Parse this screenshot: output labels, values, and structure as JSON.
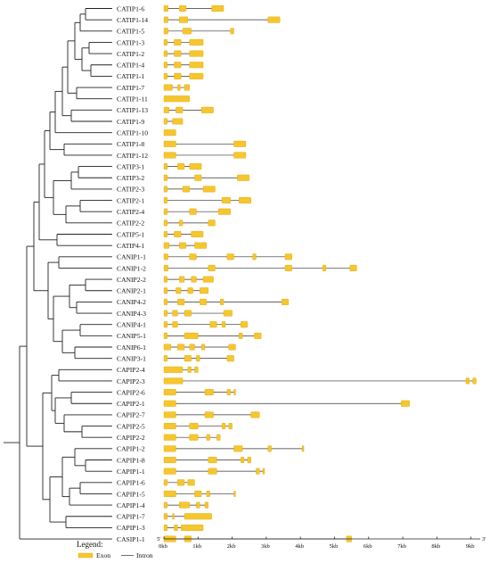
{
  "genes": [
    {
      "name": "CATIP1-6",
      "length": 1.75,
      "exons": [
        [
          0,
          0.12
        ],
        [
          0.45,
          0.65
        ],
        [
          1.4,
          1.75
        ]
      ]
    },
    {
      "name": "CATIP1-14",
      "length": 3.4,
      "exons": [
        [
          0,
          0.12
        ],
        [
          0.45,
          0.7
        ],
        [
          3.05,
          3.4
        ]
      ]
    },
    {
      "name": "CATIP1-5",
      "length": 2.05,
      "exons": [
        [
          0,
          0.12
        ],
        [
          0.55,
          0.8
        ],
        [
          1.95,
          2.05
        ]
      ]
    },
    {
      "name": "CATIP1-3",
      "length": 1.15,
      "exons": [
        [
          0,
          0.1
        ],
        [
          0.3,
          0.5
        ],
        [
          0.75,
          1.15
        ]
      ]
    },
    {
      "name": "CATIP1-2",
      "length": 1.15,
      "exons": [
        [
          0,
          0.1
        ],
        [
          0.3,
          0.5
        ],
        [
          0.75,
          1.15
        ]
      ]
    },
    {
      "name": "CATIP1-4",
      "length": 1.15,
      "exons": [
        [
          0,
          0.1
        ],
        [
          0.3,
          0.5
        ],
        [
          0.75,
          1.15
        ]
      ]
    },
    {
      "name": "CATIP1-1",
      "length": 1.15,
      "exons": [
        [
          0,
          0.1
        ],
        [
          0.3,
          0.5
        ],
        [
          0.75,
          1.15
        ]
      ]
    },
    {
      "name": "CATIP1-7",
      "length": 0.75,
      "exons": [
        [
          0,
          0.25
        ],
        [
          0.4,
          0.48
        ],
        [
          0.6,
          0.75
        ]
      ]
    },
    {
      "name": "CATIP1-11",
      "length": 0.75,
      "exons": [
        [
          0,
          0.75
        ]
      ]
    },
    {
      "name": "CATIP1-13",
      "length": 1.45,
      "exons": [
        [
          0,
          0.15
        ],
        [
          0.35,
          0.55
        ],
        [
          1.1,
          1.45
        ]
      ]
    },
    {
      "name": "CATIP1-9",
      "length": 0.55,
      "exons": [
        [
          0,
          0.1
        ],
        [
          0.25,
          0.55
        ]
      ]
    },
    {
      "name": "CATIP1-10",
      "length": 0.35,
      "exons": [
        [
          0,
          0.35
        ]
      ]
    },
    {
      "name": "CATIP1-8",
      "length": 2.4,
      "exons": [
        [
          0,
          0.35
        ],
        [
          2.05,
          2.4
        ]
      ]
    },
    {
      "name": "CATIP1-12",
      "length": 2.4,
      "exons": [
        [
          0,
          0.35
        ],
        [
          2.05,
          2.4
        ]
      ]
    },
    {
      "name": "CATIP3-1",
      "length": 1.1,
      "exons": [
        [
          0,
          0.1
        ],
        [
          0.4,
          0.6
        ],
        [
          0.75,
          1.1
        ]
      ]
    },
    {
      "name": "CATIP3-2",
      "length": 2.5,
      "exons": [
        [
          0,
          0.1
        ],
        [
          0.9,
          1.1
        ],
        [
          2.15,
          2.5
        ]
      ]
    },
    {
      "name": "CATIP2-3",
      "length": 1.5,
      "exons": [
        [
          0,
          0.1
        ],
        [
          0.55,
          0.75
        ],
        [
          1.15,
          1.5
        ]
      ]
    },
    {
      "name": "CATIP2-1",
      "length": 2.55,
      "exons": [
        [
          0,
          0.1
        ],
        [
          1.7,
          1.95
        ],
        [
          2.2,
          2.55
        ]
      ]
    },
    {
      "name": "CATIP2-4",
      "length": 1.95,
      "exons": [
        [
          0,
          0.1
        ],
        [
          0.75,
          0.95
        ],
        [
          1.6,
          1.95
        ]
      ]
    },
    {
      "name": "CATIP2-2",
      "length": 1.5,
      "exons": [
        [
          0,
          0.1
        ],
        [
          0.45,
          0.55
        ],
        [
          1.3,
          1.5
        ]
      ]
    },
    {
      "name": "CATIP5-1",
      "length": 1.15,
      "exons": [
        [
          0,
          0.1
        ],
        [
          0.3,
          0.5
        ],
        [
          0.8,
          1.15
        ]
      ]
    },
    {
      "name": "CATIP4-1",
      "length": 1.25,
      "exons": [
        [
          0,
          0.15
        ],
        [
          0.45,
          0.65
        ],
        [
          0.9,
          1.25
        ]
      ]
    },
    {
      "name": "CANIP1-1",
      "length": 3.75,
      "exons": [
        [
          0,
          0.12
        ],
        [
          0.75,
          0.95
        ],
        [
          1.85,
          2.05
        ],
        [
          2.6,
          2.7
        ],
        [
          3.55,
          3.75
        ]
      ]
    },
    {
      "name": "CANIP1-2",
      "length": 5.65,
      "exons": [
        [
          0,
          0.12
        ],
        [
          1.3,
          1.5
        ],
        [
          3.55,
          3.75
        ],
        [
          4.65,
          4.75
        ],
        [
          5.45,
          5.65
        ]
      ]
    },
    {
      "name": "CANIP2-2",
      "length": 1.45,
      "exons": [
        [
          0,
          0.1
        ],
        [
          0.45,
          0.6
        ],
        [
          0.8,
          0.95
        ],
        [
          1.15,
          1.45
        ]
      ]
    },
    {
      "name": "CANIP2-1",
      "length": 1.3,
      "exons": [
        [
          0,
          0.1
        ],
        [
          0.35,
          0.5
        ],
        [
          0.7,
          0.85
        ],
        [
          1.05,
          1.3
        ]
      ]
    },
    {
      "name": "CANIP4-2",
      "length": 3.65,
      "exons": [
        [
          0,
          0.1
        ],
        [
          0.4,
          0.6
        ],
        [
          1.05,
          1.25
        ],
        [
          1.65,
          1.75
        ],
        [
          3.45,
          3.65
        ]
      ]
    },
    {
      "name": "CANIP4-3",
      "length": 2.0,
      "exons": [
        [
          0,
          0.1
        ],
        [
          0.25,
          0.4
        ],
        [
          0.6,
          0.8
        ],
        [
          1.75,
          2.0
        ]
      ]
    },
    {
      "name": "CANIP4-1",
      "length": 2.45,
      "exons": [
        [
          0,
          0.1
        ],
        [
          0.25,
          0.4
        ],
        [
          1.35,
          1.55
        ],
        [
          1.7,
          1.8
        ],
        [
          2.25,
          2.45
        ]
      ]
    },
    {
      "name": "CANIP5-1",
      "length": 2.85,
      "exons": [
        [
          0,
          0.1
        ],
        [
          0.6,
          1.0
        ],
        [
          2.2,
          2.3
        ],
        [
          2.65,
          2.85
        ]
      ]
    },
    {
      "name": "CANIP6-1",
      "length": 2.1,
      "exons": [
        [
          0,
          0.2
        ],
        [
          0.4,
          0.6
        ],
        [
          0.75,
          0.9
        ],
        [
          1.1,
          1.2
        ],
        [
          1.9,
          2.1
        ]
      ]
    },
    {
      "name": "CANIP3-1",
      "length": 2.05,
      "exons": [
        [
          0,
          0.1
        ],
        [
          0.6,
          0.8
        ],
        [
          0.95,
          1.05
        ],
        [
          1.85,
          2.05
        ]
      ]
    },
    {
      "name": "CAPIP2-4",
      "length": 1.0,
      "exons": [
        [
          0,
          0.55
        ],
        [
          0.7,
          0.8
        ],
        [
          0.9,
          1.0
        ]
      ]
    },
    {
      "name": "CAPIP2-3",
      "length": 9.15,
      "exons": [
        [
          0,
          0.55
        ],
        [
          8.85,
          8.95
        ],
        [
          9.05,
          9.15
        ]
      ]
    },
    {
      "name": "CAPIP2-6",
      "length": 2.1,
      "exons": [
        [
          0,
          0.35
        ],
        [
          1.2,
          1.45
        ],
        [
          1.85,
          1.95
        ],
        [
          2.05,
          2.1
        ]
      ]
    },
    {
      "name": "CAPIP2-1",
      "length": 7.2,
      "exons": [
        [
          0,
          0.35
        ],
        [
          6.95,
          7.2
        ]
      ]
    },
    {
      "name": "CAPIP2-7",
      "length": 2.8,
      "exons": [
        [
          0,
          0.35
        ],
        [
          1.2,
          1.45
        ],
        [
          2.55,
          2.8
        ]
      ]
    },
    {
      "name": "CAPIP2-5",
      "length": 2.0,
      "exons": [
        [
          0,
          0.35
        ],
        [
          0.75,
          1.0
        ],
        [
          1.7,
          1.8
        ],
        [
          1.9,
          2.0
        ]
      ]
    },
    {
      "name": "CAPIP2-2",
      "length": 1.65,
      "exons": [
        [
          0,
          0.35
        ],
        [
          0.75,
          1.0
        ],
        [
          1.25,
          1.35
        ],
        [
          1.55,
          1.65
        ]
      ]
    },
    {
      "name": "CAPIP1-2",
      "length": 4.1,
      "exons": [
        [
          0,
          0.35
        ],
        [
          2.05,
          2.3
        ],
        [
          3.05,
          3.15
        ],
        [
          4.05,
          4.1
        ]
      ]
    },
    {
      "name": "CAPIP1-8",
      "length": 2.55,
      "exons": [
        [
          0,
          0.35
        ],
        [
          1.3,
          1.55
        ],
        [
          2.25,
          2.35
        ],
        [
          2.45,
          2.55
        ]
      ]
    },
    {
      "name": "CAPIP1-1",
      "length": 2.95,
      "exons": [
        [
          0,
          0.35
        ],
        [
          1.3,
          1.55
        ],
        [
          2.7,
          2.8
        ],
        [
          2.9,
          2.95
        ]
      ]
    },
    {
      "name": "CAPIP1-6",
      "length": 0.9,
      "exons": [
        [
          0,
          0.1
        ],
        [
          0.4,
          0.6
        ],
        [
          0.7,
          0.9
        ]
      ]
    },
    {
      "name": "CAPIP1-5",
      "length": 2.1,
      "exons": [
        [
          0,
          0.35
        ],
        [
          0.9,
          1.1
        ],
        [
          1.25,
          1.35
        ],
        [
          2.05,
          2.1
        ]
      ]
    },
    {
      "name": "CAPIP1-4",
      "length": 1.3,
      "exons": [
        [
          0,
          0.1
        ],
        [
          0.45,
          0.75
        ],
        [
          0.95,
          1.05
        ],
        [
          1.2,
          1.3
        ]
      ]
    },
    {
      "name": "CAPIP1-7",
      "length": 1.4,
      "exons": [
        [
          0,
          0.1
        ],
        [
          0.25,
          0.3
        ],
        [
          0.6,
          1.4
        ]
      ]
    },
    {
      "name": "CAPIP1-3",
      "length": 1.15,
      "exons": [
        [
          0,
          0.1
        ],
        [
          0.3,
          0.4
        ],
        [
          0.5,
          1.15
        ]
      ]
    },
    {
      "name": "CASIP1-1",
      "length": 5.5,
      "exons": [
        [
          0,
          0.35
        ],
        [
          0.6,
          0.8
        ],
        [
          5.35,
          5.5
        ]
      ]
    }
  ],
  "axis": {
    "start_label": "5'",
    "end_label": "3'",
    "ticks": [
      "0kb",
      "1kb",
      "2kb",
      "3kb",
      "4kb",
      "5kb",
      "6kb",
      "7kb",
      "8kb",
      "9kb"
    ],
    "max_kb": 9.3
  },
  "legend": {
    "title": "Legend:",
    "exon_label": "Exon",
    "intron_label": "Intron"
  },
  "colors": {
    "exon": "#f6c62e",
    "intron": "#333333",
    "tree": "#222222"
  }
}
